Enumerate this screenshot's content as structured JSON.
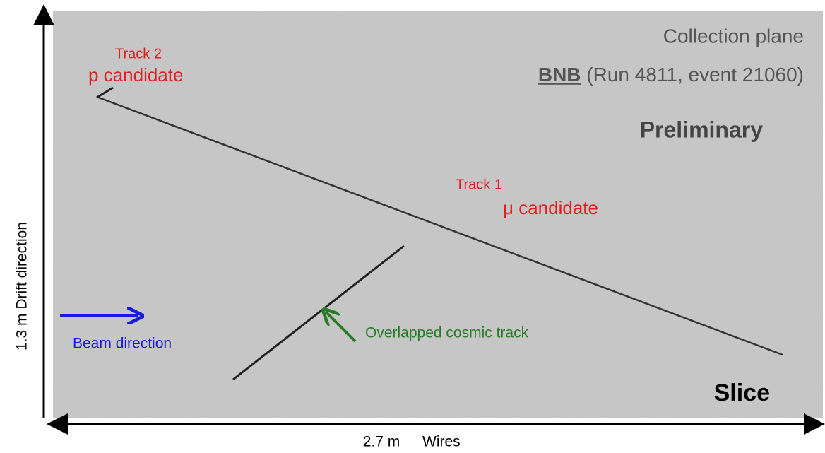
{
  "header": {
    "plane": "Collection plane",
    "beam": "BNB",
    "run": "(Run 4811, event 21060)",
    "status": "Preliminary"
  },
  "tracks": [
    {
      "name": "Track 2",
      "label": "p candidate"
    },
    {
      "name": "Track 1",
      "label": "μ candidate"
    }
  ],
  "annotations": {
    "cosmic": "Overlapped cosmic track",
    "beam": "Beam direction",
    "slice": "Slice"
  },
  "axes": {
    "y": "1.3 m Drift direction",
    "x_length": "2.7 m",
    "x_name": "Wires"
  }
}
